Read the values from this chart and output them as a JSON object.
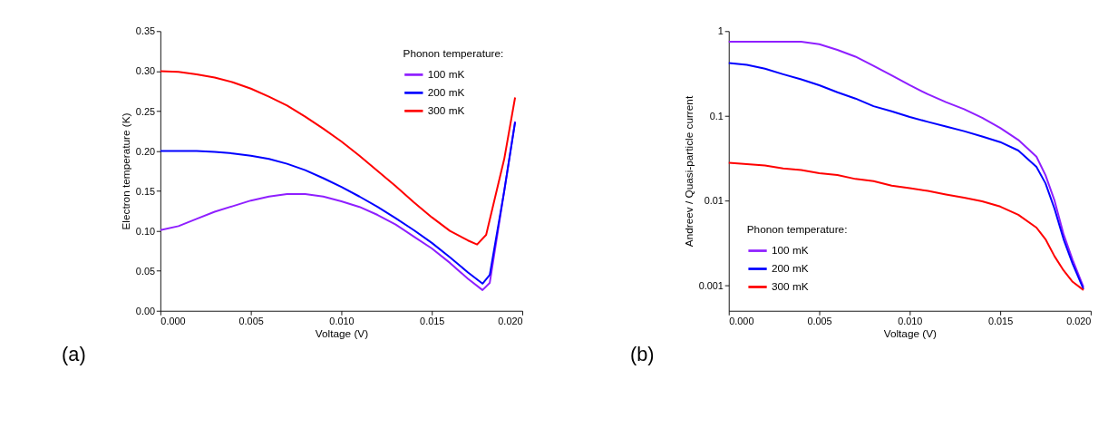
{
  "chart_data": [
    {
      "type": "line",
      "xlabel": "Voltage (V)",
      "ylabel": "Electron temperature (K)",
      "legend_title": "Phonon temperature:",
      "legend": "top right",
      "grid": false,
      "line_style": "solid",
      "marker": "none",
      "xlim": [
        0,
        0.02
      ],
      "ylim": [
        0,
        0.35
      ],
      "xticks": [
        {
          "value": 0,
          "label": "0.000"
        },
        {
          "value": 0.005,
          "label": "0.005"
        },
        {
          "value": 0.01,
          "label": "0.010"
        },
        {
          "value": 0.015,
          "label": "0.015"
        },
        {
          "value": 0.02,
          "label": "0.020"
        }
      ],
      "yticks": [
        {
          "value": 0,
          "label": "0.00"
        },
        {
          "value": 0.05,
          "label": "0.05"
        },
        {
          "value": 0.1,
          "label": "0.10"
        },
        {
          "value": 0.15,
          "label": "0.15"
        },
        {
          "value": 0.2,
          "label": "0.20"
        },
        {
          "value": 0.25,
          "label": "0.25"
        },
        {
          "value": 0.3,
          "label": "0.30"
        },
        {
          "value": 0.35,
          "label": "0.35"
        }
      ],
      "annotations": [
        "(a)"
      ],
      "series": [
        {
          "name": "100 mK",
          "color": "#8f1fff",
          "x": [
            0,
            0.001,
            0.002,
            0.003,
            0.004,
            0.005,
            0.006,
            0.007,
            0.008,
            0.009,
            0.01,
            0.011,
            0.012,
            0.013,
            0.014,
            0.015,
            0.016,
            0.017,
            0.0178,
            0.0182,
            0.019,
            0.0196
          ],
          "values": [
            0.101,
            0.106,
            0.115,
            0.124,
            0.131,
            0.138,
            0.143,
            0.146,
            0.146,
            0.143,
            0.137,
            0.13,
            0.12,
            0.108,
            0.093,
            0.078,
            0.06,
            0.04,
            0.026,
            0.035,
            0.15,
            0.237
          ]
        },
        {
          "name": "200 mK",
          "color": "#0000ff",
          "x": [
            0,
            0.001,
            0.002,
            0.003,
            0.004,
            0.005,
            0.006,
            0.007,
            0.008,
            0.009,
            0.01,
            0.011,
            0.012,
            0.013,
            0.014,
            0.015,
            0.016,
            0.017,
            0.0178,
            0.0182,
            0.019,
            0.0196
          ],
          "values": [
            0.2,
            0.2,
            0.2,
            0.199,
            0.197,
            0.194,
            0.19,
            0.184,
            0.176,
            0.166,
            0.155,
            0.143,
            0.13,
            0.116,
            0.101,
            0.085,
            0.067,
            0.048,
            0.034,
            0.045,
            0.15,
            0.236
          ]
        },
        {
          "name": "300 mK",
          "color": "#ff0000",
          "x": [
            0,
            0.001,
            0.002,
            0.003,
            0.004,
            0.005,
            0.006,
            0.007,
            0.008,
            0.009,
            0.01,
            0.011,
            0.012,
            0.013,
            0.014,
            0.015,
            0.016,
            0.017,
            0.0175,
            0.018,
            0.019,
            0.0196
          ],
          "values": [
            0.3,
            0.299,
            0.296,
            0.292,
            0.286,
            0.278,
            0.268,
            0.257,
            0.243,
            0.228,
            0.212,
            0.194,
            0.175,
            0.156,
            0.136,
            0.117,
            0.1,
            0.088,
            0.083,
            0.095,
            0.19,
            0.267
          ]
        }
      ]
    },
    {
      "type": "line",
      "xlabel": "Voltage (V)",
      "ylabel": "Andreev / Quasi-particle current",
      "legend_title": "Phonon temperature:",
      "legend": "bottom left",
      "grid": false,
      "line_style": "solid",
      "marker": "none",
      "log": "y",
      "xlim": [
        0,
        0.02
      ],
      "ylim": [
        0.0005,
        1
      ],
      "xticks": [
        {
          "value": 0,
          "label": "0.000"
        },
        {
          "value": 0.005,
          "label": "0.005"
        },
        {
          "value": 0.01,
          "label": "0.010"
        },
        {
          "value": 0.015,
          "label": "0.015"
        },
        {
          "value": 0.02,
          "label": "0.020"
        }
      ],
      "yticks": [
        0.001,
        0.01,
        0.1,
        1
      ],
      "annotations": [
        "(b)"
      ],
      "series": [
        {
          "name": "100 mK",
          "color": "#8f1fff",
          "x": [
            0,
            0.001,
            0.002,
            0.003,
            0.004,
            0.005,
            0.006,
            0.007,
            0.008,
            0.009,
            0.01,
            0.011,
            0.012,
            0.013,
            0.014,
            0.015,
            0.016,
            0.017,
            0.0175,
            0.018,
            0.0185,
            0.019,
            0.0196
          ],
          "values": [
            0.75,
            0.75,
            0.75,
            0.75,
            0.75,
            0.7,
            0.6,
            0.5,
            0.39,
            0.3,
            0.23,
            0.18,
            0.145,
            0.12,
            0.095,
            0.072,
            0.052,
            0.033,
            0.02,
            0.01,
            0.004,
            0.002,
            0.00095
          ]
        },
        {
          "name": "200 mK",
          "color": "#0000ff",
          "x": [
            0,
            0.001,
            0.002,
            0.003,
            0.004,
            0.005,
            0.006,
            0.007,
            0.008,
            0.009,
            0.01,
            0.011,
            0.012,
            0.013,
            0.014,
            0.015,
            0.016,
            0.017,
            0.0175,
            0.018,
            0.0185,
            0.019,
            0.0196
          ],
          "values": [
            0.42,
            0.4,
            0.36,
            0.31,
            0.27,
            0.23,
            0.19,
            0.16,
            0.13,
            0.113,
            0.097,
            0.085,
            0.075,
            0.066,
            0.057,
            0.049,
            0.039,
            0.025,
            0.016,
            0.008,
            0.0035,
            0.0018,
            0.0009
          ]
        },
        {
          "name": "300 mK",
          "color": "#ff0000",
          "x": [
            0,
            0.001,
            0.002,
            0.003,
            0.004,
            0.005,
            0.006,
            0.007,
            0.008,
            0.009,
            0.01,
            0.011,
            0.012,
            0.013,
            0.014,
            0.015,
            0.016,
            0.017,
            0.0175,
            0.018,
            0.0185,
            0.019,
            0.0196
          ],
          "values": [
            0.028,
            0.027,
            0.026,
            0.024,
            0.023,
            0.021,
            0.02,
            0.018,
            0.017,
            0.015,
            0.014,
            0.013,
            0.0118,
            0.0108,
            0.0098,
            0.0085,
            0.0068,
            0.0048,
            0.0035,
            0.0022,
            0.0015,
            0.0011,
            0.00088
          ]
        }
      ]
    }
  ]
}
